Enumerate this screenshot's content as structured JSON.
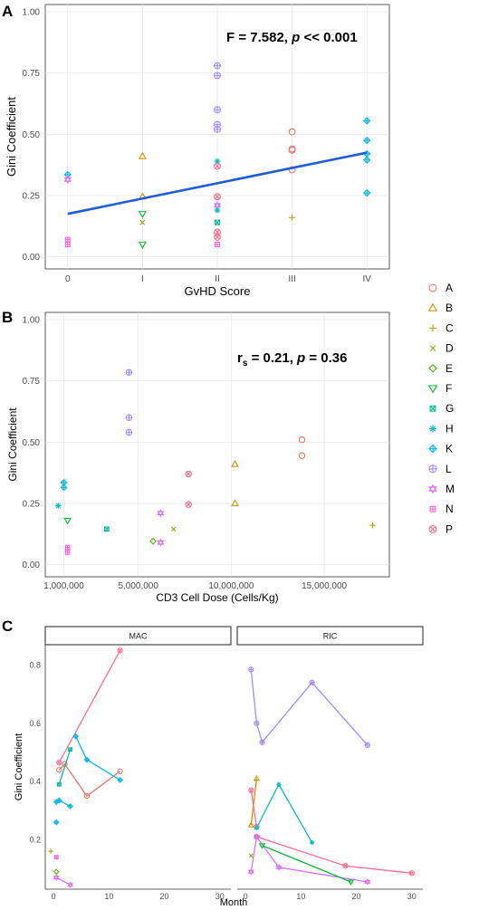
{
  "figure": {
    "legend": {
      "items": [
        {
          "label": "A",
          "color": "#E8756A",
          "shape": "circle"
        },
        {
          "label": "B",
          "color": "#D89000",
          "shape": "triangle"
        },
        {
          "label": "C",
          "color": "#C49A00",
          "shape": "plus"
        },
        {
          "label": "D",
          "color": "#8AAB00",
          "shape": "x"
        },
        {
          "label": "E",
          "color": "#53B400",
          "shape": "diamond"
        },
        {
          "label": "F",
          "color": "#00BA38",
          "shape": "triangle-down"
        },
        {
          "label": "G",
          "color": "#00C094",
          "shape": "square-x"
        },
        {
          "label": "H",
          "color": "#00BFC4",
          "shape": "asterisk"
        },
        {
          "label": "K",
          "color": "#00B6EB",
          "shape": "diamond-plus"
        },
        {
          "label": "L",
          "color": "#A58AFF",
          "shape": "circle-plus"
        },
        {
          "label": "M",
          "color": "#DF70F8",
          "shape": "star-of-david"
        },
        {
          "label": "N",
          "color": "#FB61D7",
          "shape": "square-plus"
        },
        {
          "label": "P",
          "color": "#FF6C91",
          "shape": "circle-x"
        }
      ]
    }
  },
  "chart_data": [
    {
      "panel": "A",
      "type": "scatter",
      "annotation": {
        "prefix": "F = 7.582, ",
        "p": "p",
        "suffix": " << 0.001"
      },
      "xlabel": "GvHD Score",
      "ylabel": "Gini Coefficient",
      "categories": [
        "0",
        "I",
        "II",
        "III",
        "IV"
      ],
      "ylim": [
        -0.05,
        1.03
      ],
      "yticks": [
        "0.00",
        "0.25",
        "0.50",
        "0.75",
        "1.00"
      ],
      "regression": {
        "x": [
          0,
          4
        ],
        "y": [
          0.175,
          0.425
        ],
        "color": "#1F5CD9"
      },
      "points": [
        {
          "x": 0,
          "y": 0.335,
          "s": "K"
        },
        {
          "x": 0,
          "y": 0.315,
          "s": "M"
        },
        {
          "x": 0,
          "y": 0.07,
          "s": "N"
        },
        {
          "x": 0,
          "y": 0.05,
          "s": "N"
        },
        {
          "x": 1,
          "y": 0.41,
          "s": "B"
        },
        {
          "x": 1,
          "y": 0.245,
          "s": "B"
        },
        {
          "x": 1,
          "y": 0.175,
          "s": "F"
        },
        {
          "x": 1,
          "y": 0.14,
          "s": "D"
        },
        {
          "x": 1,
          "y": 0.05,
          "s": "F"
        },
        {
          "x": 2,
          "y": 0.78,
          "s": "L"
        },
        {
          "x": 2,
          "y": 0.74,
          "s": "L"
        },
        {
          "x": 2,
          "y": 0.6,
          "s": "L"
        },
        {
          "x": 2,
          "y": 0.54,
          "s": "L"
        },
        {
          "x": 2,
          "y": 0.52,
          "s": "L"
        },
        {
          "x": 2,
          "y": 0.39,
          "s": "H"
        },
        {
          "x": 2,
          "y": 0.37,
          "s": "P"
        },
        {
          "x": 2,
          "y": 0.245,
          "s": "P"
        },
        {
          "x": 2,
          "y": 0.21,
          "s": "M"
        },
        {
          "x": 2,
          "y": 0.19,
          "s": "H"
        },
        {
          "x": 2,
          "y": 0.14,
          "s": "G"
        },
        {
          "x": 2,
          "y": 0.1,
          "s": "P"
        },
        {
          "x": 2,
          "y": 0.08,
          "s": "P"
        },
        {
          "x": 2,
          "y": 0.05,
          "s": "N"
        },
        {
          "x": 3,
          "y": 0.51,
          "s": "A"
        },
        {
          "x": 3,
          "y": 0.44,
          "s": "A"
        },
        {
          "x": 3,
          "y": 0.435,
          "s": "A"
        },
        {
          "x": 3,
          "y": 0.355,
          "s": "A"
        },
        {
          "x": 3,
          "y": 0.16,
          "s": "C"
        },
        {
          "x": 4,
          "y": 0.555,
          "s": "K"
        },
        {
          "x": 4,
          "y": 0.475,
          "s": "K"
        },
        {
          "x": 4,
          "y": 0.42,
          "s": "K"
        },
        {
          "x": 4,
          "y": 0.395,
          "s": "K"
        },
        {
          "x": 4,
          "y": 0.26,
          "s": "K"
        }
      ]
    },
    {
      "panel": "B",
      "type": "scatter",
      "annotation": {
        "r": "r",
        "sub": "s",
        "mid": " = 0.21, ",
        "p": "p",
        "suffix": " = 0.36"
      },
      "xlabel": "CD3 Cell Dose (Cells/Kg)",
      "ylabel": "Gini Coefficient",
      "xlim": [
        0,
        18500000
      ],
      "xticks": [
        {
          "v": 1000000,
          "l": "1,000,000"
        },
        {
          "v": 5000000,
          "l": "5,000,000"
        },
        {
          "v": 10000000,
          "l": "10,000,000"
        },
        {
          "v": 15000000,
          "l": "15,000,000"
        }
      ],
      "ylim": [
        -0.05,
        1.03
      ],
      "yticks": [
        "0.00",
        "0.25",
        "0.50",
        "0.75",
        "1.00"
      ],
      "points": [
        {
          "x": 700000,
          "y": 0.24,
          "s": "H"
        },
        {
          "x": 1000000,
          "y": 0.335,
          "s": "K"
        },
        {
          "x": 1000000,
          "y": 0.315,
          "s": "K"
        },
        {
          "x": 1200000,
          "y": 0.18,
          "s": "F"
        },
        {
          "x": 1200000,
          "y": 0.07,
          "s": "N"
        },
        {
          "x": 1200000,
          "y": 0.05,
          "s": "N"
        },
        {
          "x": 3300000,
          "y": 0.145,
          "s": "G"
        },
        {
          "x": 4500000,
          "y": 0.785,
          "s": "L"
        },
        {
          "x": 4500000,
          "y": 0.6,
          "s": "L"
        },
        {
          "x": 4500000,
          "y": 0.54,
          "s": "L"
        },
        {
          "x": 5800000,
          "y": 0.095,
          "s": "E"
        },
        {
          "x": 6200000,
          "y": 0.21,
          "s": "M"
        },
        {
          "x": 6200000,
          "y": 0.09,
          "s": "M"
        },
        {
          "x": 6900000,
          "y": 0.145,
          "s": "D"
        },
        {
          "x": 7700000,
          "y": 0.37,
          "s": "P"
        },
        {
          "x": 7700000,
          "y": 0.245,
          "s": "P"
        },
        {
          "x": 10200000,
          "y": 0.41,
          "s": "B"
        },
        {
          "x": 10200000,
          "y": 0.25,
          "s": "B"
        },
        {
          "x": 13800000,
          "y": 0.51,
          "s": "A"
        },
        {
          "x": 13800000,
          "y": 0.445,
          "s": "A"
        },
        {
          "x": 17600000,
          "y": 0.16,
          "s": "C"
        }
      ]
    },
    {
      "panel": "C",
      "type": "line",
      "xlabel": "Month",
      "ylabel": "Gini Coefficient",
      "xlim": [
        -1.5,
        32
      ],
      "xticks": [
        "0",
        "10",
        "20",
        "30"
      ],
      "ylim": [
        0.03,
        0.87
      ],
      "yticks": [
        "0.2",
        "0.4",
        "0.6",
        "0.8"
      ],
      "facets": [
        {
          "title": "MAC",
          "series": [
            {
              "s": "A",
              "points": [
                [
                  1,
                  0.44
                ],
                [
                  2,
                  0.46
                ],
                [
                  6,
                  0.35
                ],
                [
                  12,
                  0.435
                ]
              ]
            },
            {
              "s": "P",
              "points": [
                [
                  1,
                  0.465
                ],
                [
                  12,
                  0.85
                ]
              ]
            },
            {
              "s": "G",
              "points": [
                [
                  1,
                  0.39
                ],
                [
                  3,
                  0.51
                ]
              ]
            },
            {
              "s": "K",
              "points": [
                [
                  0.5,
                  0.33
                ],
                [
                  1,
                  0.335
                ],
                [
                  3,
                  0.315
                ]
              ]
            },
            {
              "s": "K",
              "points": [
                [
                  4,
                  0.555
                ],
                [
                  6,
                  0.475
                ],
                [
                  12,
                  0.405
                ]
              ]
            },
            {
              "s": "K",
              "points": [
                [
                  0.5,
                  0.26
                ]
              ]
            },
            {
              "s": "C",
              "points": [
                [
                  -0.5,
                  0.16
                ]
              ]
            },
            {
              "s": "N",
              "points": [
                [
                  0.5,
                  0.14
                ]
              ]
            },
            {
              "s": "E",
              "points": [
                [
                  0.5,
                  0.09
                ]
              ]
            },
            {
              "s": "M",
              "points": [
                [
                  0.5,
                  0.07
                ],
                [
                  3,
                  0.045
                ]
              ]
            }
          ]
        },
        {
          "title": "RIC",
          "series": [
            {
              "s": "L",
              "points": [
                [
                  1,
                  0.785
                ],
                [
                  2,
                  0.6
                ],
                [
                  3,
                  0.535
                ],
                [
                  12,
                  0.74
                ],
                [
                  22,
                  0.525
                ]
              ]
            },
            {
              "s": "B",
              "points": [
                [
                  1,
                  0.25
                ],
                [
                  2,
                  0.41
                ]
              ]
            },
            {
              "s": "P",
              "points": [
                [
                  1,
                  0.37
                ],
                [
                  2,
                  0.245
                ]
              ]
            },
            {
              "s": "H",
              "points": [
                [
                  2,
                  0.24
                ],
                [
                  6,
                  0.39
                ],
                [
                  12,
                  0.19
                ]
              ]
            },
            {
              "s": "P",
              "points": [
                [
                  2,
                  0.21
                ],
                [
                  18,
                  0.11
                ],
                [
                  30,
                  0.085
                ]
              ]
            },
            {
              "s": "M",
              "points": [
                [
                  1,
                  0.09
                ],
                [
                  2,
                  0.21
                ],
                [
                  6,
                  0.105
                ],
                [
                  22,
                  0.055
                ]
              ]
            },
            {
              "s": "F",
              "points": [
                [
                  3,
                  0.18
                ],
                [
                  19,
                  0.055
                ]
              ]
            },
            {
              "s": "D",
              "points": [
                [
                  1,
                  0.145
                ]
              ]
            }
          ]
        }
      ]
    }
  ]
}
